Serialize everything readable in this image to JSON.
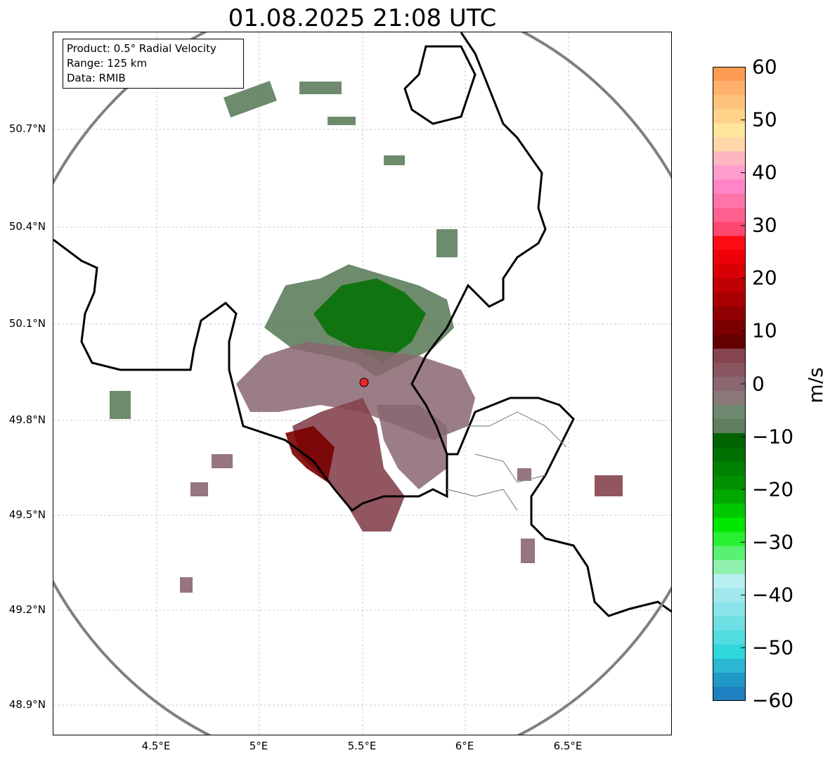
{
  "title": "01.08.2025 21:08 UTC",
  "info_box": {
    "product": "Product: 0.5° Radial Velocity",
    "range": "Range: 125 km",
    "data": "Data: RMIB"
  },
  "map": {
    "lat_labels": [
      "50.7°N",
      "50.4°N",
      "50.1°N",
      "49.8°N",
      "49.5°N",
      "49.2°N",
      "48.9°N"
    ],
    "lon_labels": [
      "4.5°E",
      "5°E",
      "5.5°E",
      "6°E",
      "6.5°E"
    ],
    "radar_site_color": "#e8262a",
    "range_ring_color": "#808080",
    "border_color": "#000000",
    "admin_border_color": "#888888"
  },
  "colorbar": {
    "units": "m/s",
    "min": -60,
    "max": 60,
    "tick_labels": [
      "60",
      "50",
      "40",
      "30",
      "20",
      "10",
      "0",
      "−10",
      "−20",
      "−30",
      "−40",
      "−50",
      "−60"
    ],
    "colors_top_to_bottom": [
      "#ff9a52",
      "#ffb06a",
      "#ffc27a",
      "#ffd38a",
      "#ffe69a",
      "#ffd7a8",
      "#ffb6c0",
      "#ff9ccc",
      "#ff85c8",
      "#ff74a8",
      "#ff6090",
      "#ff4870",
      "#ff0b14",
      "#ee0008",
      "#d80005",
      "#c00004",
      "#a80002",
      "#900002",
      "#7a0000",
      "#650000",
      "#864450",
      "#8a5560",
      "#8a6670",
      "#8a7878",
      "#6e8870",
      "#5e7e5e",
      "#006300",
      "#007000",
      "#008000",
      "#009000",
      "#00a800",
      "#00c800",
      "#00e800",
      "#28f030",
      "#5af070",
      "#90f0b0",
      "#b8f0f0",
      "#a0e8ec",
      "#88e4e8",
      "#6ee0e4",
      "#50dce0",
      "#30d8dc",
      "#2ab8d4",
      "#2098c8",
      "#1e80c0"
    ]
  }
}
